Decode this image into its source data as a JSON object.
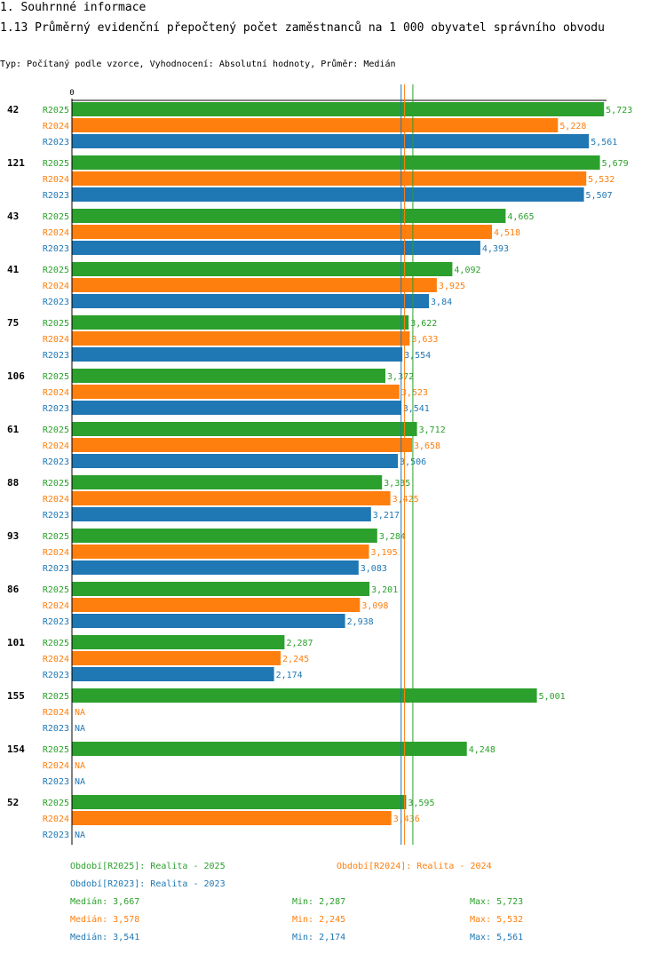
{
  "header": {
    "section": "1. Souhrnné informace",
    "title": "1.13 Průměrný evidenční přepočtený počet zaměstnanců na 1 000 obyvatel správního obvodu",
    "subtitle": "Typ: Počítaný podle vzorce, Vyhodnocení: Absolutní hodnoty, Průměr: Medián"
  },
  "colors": {
    "R2025": "#2ca02c",
    "R2024": "#ff7f0e",
    "R2023": "#1f77b4"
  },
  "chart_data": {
    "type": "bar",
    "orientation": "horizontal",
    "title": "1.13 Průměrný evidenční přepočtený počet zaměstnanců na 1 000 obyvatel správního obvodu",
    "x_axis_zero_label": "0",
    "xlim": [
      0,
      5.75
    ],
    "decimal_separator": ",",
    "na_label": "NA",
    "categories": [
      "42",
      "121",
      "43",
      "41",
      "75",
      "106",
      "61",
      "88",
      "93",
      "86",
      "101",
      "155",
      "154",
      "52"
    ],
    "series": [
      {
        "name": "R2025",
        "color": "#2ca02c",
        "values": [
          5.723,
          5.679,
          4.665,
          4.092,
          3.622,
          3.372,
          3.712,
          3.335,
          3.284,
          3.201,
          2.287,
          5.001,
          4.248,
          3.595
        ],
        "labels": [
          "5,723",
          "5,679",
          "4,665",
          "4,092",
          "3,622",
          "3,372",
          "3,712",
          "3,335",
          "3,284",
          "3,201",
          "2,287",
          "5,001",
          "4,248",
          "3,595"
        ]
      },
      {
        "name": "R2024",
        "color": "#ff7f0e",
        "values": [
          5.228,
          5.532,
          4.518,
          3.925,
          3.633,
          3.523,
          3.658,
          3.425,
          3.195,
          3.098,
          2.245,
          null,
          null,
          3.436
        ],
        "labels": [
          "5,228",
          "5,532",
          "4,518",
          "3,925",
          "3,633",
          "3,523",
          "3,658",
          "3,425",
          "3,195",
          "3,098",
          "2,245",
          "NA",
          "NA",
          "3,436"
        ]
      },
      {
        "name": "R2023",
        "color": "#1f77b4",
        "values": [
          5.561,
          5.507,
          4.393,
          3.84,
          3.554,
          3.541,
          3.506,
          3.217,
          3.083,
          2.938,
          2.174,
          null,
          null,
          null
        ],
        "labels": [
          "5,561",
          "5,507",
          "4,393",
          "3,84",
          "3,554",
          "3,541",
          "3,506",
          "3,217",
          "3,083",
          "2,938",
          "2,174",
          "NA",
          "NA",
          "NA"
        ]
      }
    ],
    "median_lines": [
      {
        "series": "R2025",
        "value": 3.667
      },
      {
        "series": "R2024",
        "value": 3.578
      },
      {
        "series": "R2023",
        "value": 3.541
      }
    ]
  },
  "legend": {
    "r2025": "Období[R2025]: Realita - 2025",
    "r2024": "Období[R2024]: Realita - 2024",
    "r2023": "Období[R2023]: Realita - 2023"
  },
  "stats": {
    "r2025": {
      "median": "Medián: 3,667",
      "min": "Min: 2,287",
      "max": "Max: 5,723"
    },
    "r2024": {
      "median": "Medián: 3,578",
      "min": "Min: 2,245",
      "max": "Max: 5,532"
    },
    "r2023": {
      "median": "Medián: 3,541",
      "min": "Min: 2,174",
      "max": "Max: 5,561"
    }
  }
}
